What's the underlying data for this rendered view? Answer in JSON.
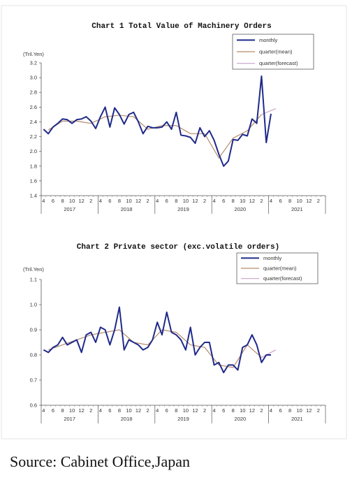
{
  "source_text": "Source: Cabinet Office,Japan",
  "chart_data": [
    {
      "type": "line",
      "title": "Chart 1 Total Value of Machinery Orders",
      "unit_label": "(Tril.Yen)",
      "ylim": [
        1.4,
        3.2
      ],
      "yticks": [
        "3.2",
        "3.0",
        "2.8",
        "2.6",
        "2.4",
        "2.2",
        "2.0",
        "1.8",
        "1.6",
        "1.4"
      ],
      "x_month_labels": [
        "4",
        "6",
        "8",
        "10",
        "12",
        "2",
        "4",
        "6",
        "8",
        "10",
        "12",
        "2",
        "4",
        "6",
        "8",
        "10",
        "12",
        "2",
        "4",
        "6",
        "8",
        "10",
        "12",
        "2",
        "4",
        "6",
        "8",
        "10",
        "12",
        "2"
      ],
      "years": [
        "2017",
        "2018",
        "2019",
        "2020",
        "2021"
      ],
      "legend": [
        "monthly",
        "quarter(mean)",
        "quarter(forecast)"
      ],
      "colors": {
        "monthly": "#1f2a8a",
        "quarter_mean": "#b58a6a",
        "quarter_forecast": "#c9a3c9"
      },
      "series": [
        {
          "name": "monthly",
          "x_start": "2017-04",
          "values": [
            2.3,
            2.24,
            2.33,
            2.38,
            2.44,
            2.43,
            2.38,
            2.43,
            2.44,
            2.47,
            2.41,
            2.31,
            2.47,
            2.6,
            2.33,
            2.59,
            2.5,
            2.37,
            2.5,
            2.53,
            2.4,
            2.24,
            2.34,
            2.32,
            2.32,
            2.33,
            2.4,
            2.3,
            2.53,
            2.22,
            2.21,
            2.19,
            2.11,
            2.32,
            2.2,
            2.28,
            2.15,
            1.96,
            1.8,
            1.87,
            2.16,
            2.15,
            2.23,
            2.21,
            2.44,
            2.38,
            3.02,
            2.12,
            2.51
          ]
        },
        {
          "name": "quarter(mean)",
          "x": [
            "2017-05",
            "2017-08",
            "2017-11",
            "2018-02",
            "2018-05",
            "2018-08",
            "2018-11",
            "2019-02",
            "2019-05",
            "2019-08",
            "2019-11",
            "2020-02",
            "2020-05",
            "2020-08",
            "2020-11",
            "2021-02"
          ],
          "values": [
            2.29,
            2.41,
            2.41,
            2.38,
            2.47,
            2.49,
            2.47,
            2.3,
            2.35,
            2.35,
            2.24,
            2.24,
            1.91,
            2.18,
            2.28,
            2.5
          ]
        },
        {
          "name": "quarter(forecast)",
          "x": [
            "2021-02",
            "2021-05"
          ],
          "values": [
            2.5,
            2.58
          ]
        }
      ]
    },
    {
      "type": "line",
      "title": "Chart 2 Private sector (exc.volatile orders)",
      "unit_label": "(Tril.Yen)",
      "ylim": [
        0.6,
        1.1
      ],
      "yticks": [
        "1.1",
        "1.0",
        "0.9",
        "0.8",
        "0.7",
        "0.6"
      ],
      "x_month_labels": [
        "4",
        "6",
        "8",
        "10",
        "12",
        "2",
        "4",
        "6",
        "8",
        "10",
        "12",
        "2",
        "4",
        "6",
        "8",
        "10",
        "12",
        "2",
        "4",
        "6",
        "8",
        "10",
        "12",
        "2",
        "4",
        "6",
        "8",
        "10",
        "12",
        "2"
      ],
      "years": [
        "2017",
        "2018",
        "2019",
        "2020",
        "2021"
      ],
      "legend": [
        "monthly",
        "quarter(mean)",
        "quarter(forecast)"
      ],
      "colors": {
        "monthly": "#1f2a8a",
        "quarter_mean": "#b58a6a",
        "quarter_forecast": "#c9a3c9"
      },
      "series": [
        {
          "name": "monthly",
          "x_start": "2017-04",
          "values": [
            0.82,
            0.81,
            0.83,
            0.84,
            0.87,
            0.84,
            0.85,
            0.86,
            0.81,
            0.88,
            0.89,
            0.85,
            0.91,
            0.9,
            0.84,
            0.9,
            0.99,
            0.82,
            0.86,
            0.85,
            0.84,
            0.82,
            0.83,
            0.86,
            0.93,
            0.88,
            0.97,
            0.89,
            0.88,
            0.86,
            0.82,
            0.91,
            0.8,
            0.83,
            0.85,
            0.85,
            0.76,
            0.77,
            0.73,
            0.76,
            0.76,
            0.74,
            0.83,
            0.84,
            0.88,
            0.84,
            0.77,
            0.8,
            0.8
          ]
        },
        {
          "name": "quarter(mean)",
          "x": [
            "2017-05",
            "2017-08",
            "2017-11",
            "2018-02",
            "2018-05",
            "2018-08",
            "2018-11",
            "2019-02",
            "2019-05",
            "2019-08",
            "2019-11",
            "2020-02",
            "2020-05",
            "2020-08",
            "2020-11",
            "2021-02"
          ],
          "values": [
            0.82,
            0.84,
            0.86,
            0.88,
            0.89,
            0.9,
            0.85,
            0.84,
            0.9,
            0.89,
            0.84,
            0.83,
            0.76,
            0.75,
            0.84,
            0.79
          ]
        },
        {
          "name": "quarter(forecast)",
          "x": [
            "2021-02",
            "2021-05"
          ],
          "values": [
            0.79,
            0.82
          ]
        }
      ]
    }
  ]
}
